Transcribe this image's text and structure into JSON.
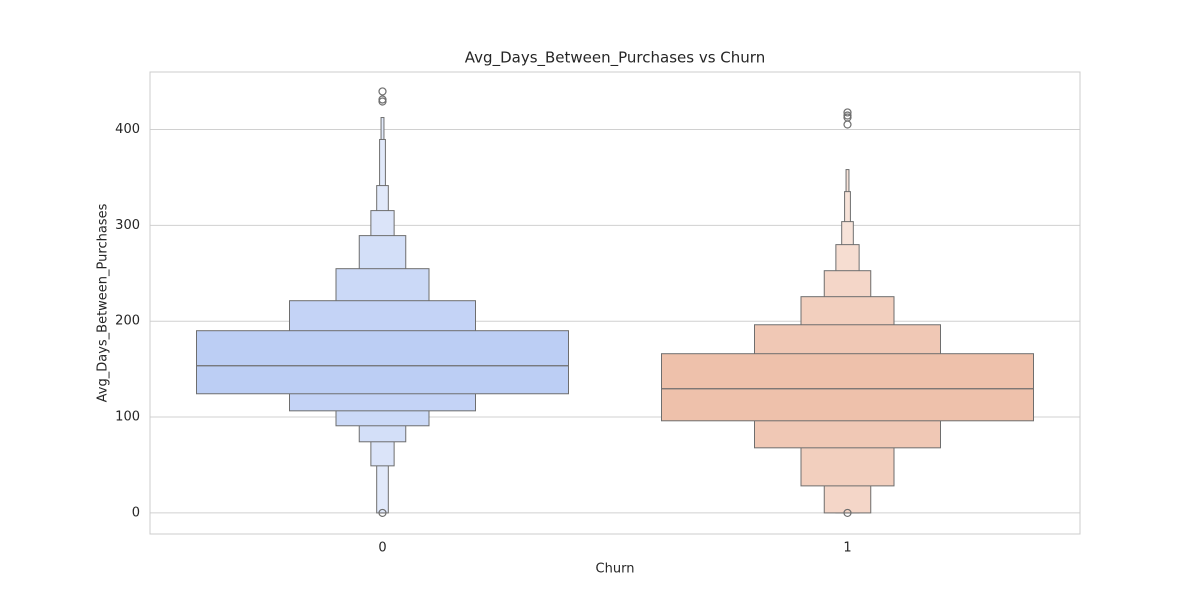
{
  "chart_data": {
    "type": "boxen",
    "title": "Avg_Days_Between_Purchases vs Churn",
    "x_label": "Churn",
    "y_label": "Avg_Days_Between_Purchases",
    "categories": [
      "0",
      "1"
    ],
    "series": [
      {
        "color": "#b3c7f3",
        "levels": [
          [
            124.3,
            190.1
          ],
          [
            106.5,
            221.4
          ],
          [
            90.9,
            254.8
          ],
          [
            74.2,
            289.3
          ],
          [
            49.1,
            315.4
          ],
          [
            0,
            341.5
          ],
          [
            0,
            389.6
          ],
          [
            0,
            412.5
          ]
        ],
        "median": 153.5,
        "outliers": [
          439.7,
          431.3,
          429.2,
          0
        ]
      },
      {
        "color": "#ecb9a0",
        "levels": [
          [
            96.1,
            166.1
          ],
          [
            67.9,
            196.3
          ],
          [
            28.2,
            225.6
          ],
          [
            0,
            252.7
          ],
          [
            0,
            279.9
          ],
          [
            0,
            303.9
          ],
          [
            0,
            335.2
          ],
          [
            0,
            358.2
          ]
        ],
        "median": 129.5,
        "outliers": [
          417.8,
          414.6,
          412.5,
          405.2,
          0
        ]
      }
    ],
    "ylim": [
      -22,
      460
    ],
    "yticks": [
      0,
      100,
      200,
      300,
      400
    ],
    "grid": true
  }
}
